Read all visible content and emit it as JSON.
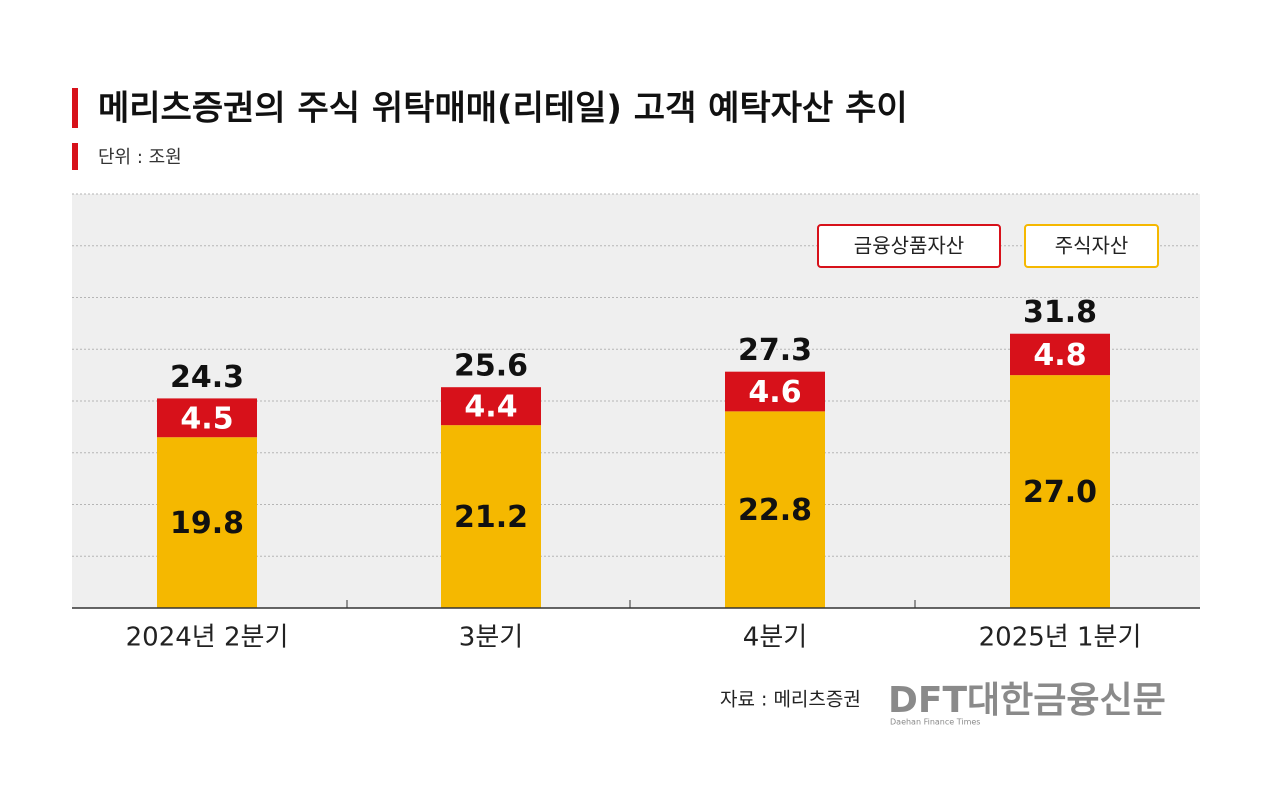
{
  "chart_data": {
    "type": "stacked_bar",
    "title": "메리츠증권의 주식 위탁매매(리테일) 고객 예탁자산 추이",
    "subtitle": "단위 : 조원",
    "categories": [
      "2024년 2분기",
      "3분기",
      "4분기",
      "2025년 1분기"
    ],
    "series": [
      {
        "name": "주식자산",
        "color": "#f5b800",
        "values": [
          19.8,
          21.2,
          22.8,
          27.0
        ],
        "value_labels": [
          "19.8",
          "21.2",
          "22.8",
          "27.0"
        ]
      },
      {
        "name": "금융상품자산",
        "color": "#d7111a",
        "values": [
          4.5,
          4.4,
          4.6,
          4.8
        ]
      }
    ],
    "totals": [
      24.3,
      25.6,
      27.3,
      31.8
    ],
    "ylim": [
      0,
      48
    ],
    "yticks": [
      0,
      6,
      12,
      18,
      24,
      30,
      36,
      42,
      48
    ],
    "grid": true,
    "legend": "top-right",
    "source": "자료 : 메리츠증권",
    "logo": "DFT대한금융신문",
    "logo_subtitle": "Daehan Finance Times"
  }
}
